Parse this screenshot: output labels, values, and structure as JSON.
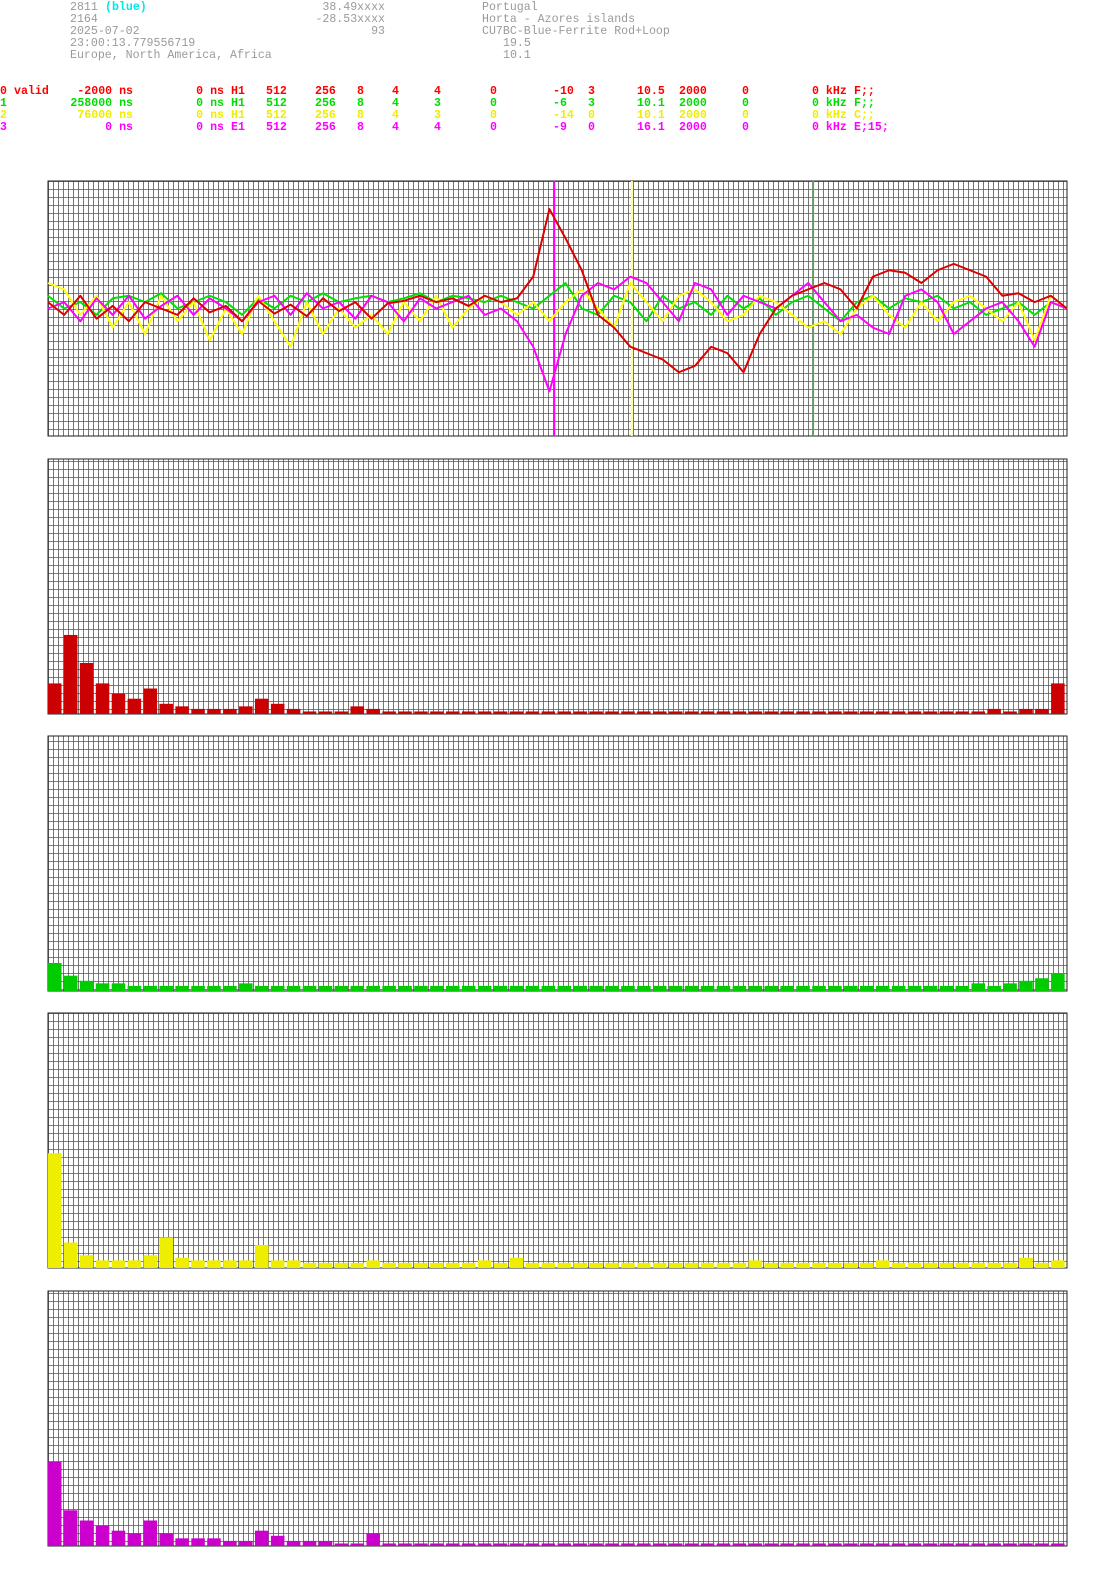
{
  "header": {
    "station": "2811",
    "station_note": "(blue)",
    "id": "2164",
    "date": "2025-07-02",
    "time": "23:00:13.779556719",
    "region": "Europe, North America, Africa",
    "latitude": "38.49xxxx",
    "longitude": "-28.53xxxx",
    "altitude": "93",
    "country": "Portugal",
    "city": "Horta - Azores islands",
    "antenna": "CU7BC-Blue-Ferrite Rod+Loop",
    "value_a": "19.5",
    "value_b": "10.1"
  },
  "channels": [
    {
      "channel": "0",
      "status": "valid",
      "color": "#ff0000",
      "cells": [
        "-2000 ns",
        "0 ns",
        "H1",
        "512",
        "256",
        "8",
        "4",
        "4",
        "0",
        "-10",
        "3",
        "10.5",
        "2000",
        "0",
        "0 kHz",
        "F;;"
      ]
    },
    {
      "channel": "1",
      "color": "#00dd00",
      "cells": [
        "258000 ns",
        "0 ns",
        "H1",
        "512",
        "256",
        "8",
        "4",
        "3",
        "0",
        "-6",
        "3",
        "10.1",
        "2000",
        "0",
        "0 kHz",
        "F;;"
      ]
    },
    {
      "channel": "2",
      "color": "#eeee00",
      "cells": [
        "76000 ns",
        "0 ns",
        "H1",
        "512",
        "256",
        "8",
        "4",
        "3",
        "0",
        "-14",
        "0",
        "10.1",
        "2000",
        "0",
        "0 kHz",
        "C;;"
      ]
    },
    {
      "channel": "3",
      "color": "#ff00ff",
      "cells": [
        "0 ns",
        "0 ns",
        "E1",
        "512",
        "256",
        "8",
        "4",
        "4",
        "0",
        "-9",
        "0",
        "16.1",
        "2000",
        "0",
        "0 kHz",
        "E;15;"
      ]
    }
  ],
  "chart_data": [
    {
      "type": "line",
      "xlim": [
        0,
        63
      ],
      "ylim": [
        -1,
        1
      ],
      "grid": true,
      "markers": [
        {
          "x": 31.3,
          "color": "#ff00ff"
        },
        {
          "x": 36.1,
          "color": "#ffff99"
        },
        {
          "x": 47.3,
          "color": "#669966"
        }
      ],
      "series": [
        {
          "color": "#00e000",
          "values": [
            0.1,
            0.0,
            0.05,
            -0.05,
            0.08,
            0.1,
            0.05,
            0.12,
            0.0,
            0.05,
            0.1,
            0.05,
            -0.05,
            0.08,
            0.0,
            0.1,
            0.05,
            0.12,
            0.05,
            0.08,
            0.1,
            0.05,
            0.08,
            0.12,
            0.05,
            0.1,
            0.08,
            0.05,
            0.1,
            0.05,
            0.0,
            0.1,
            0.2,
            0.0,
            -0.05,
            0.1,
            0.05,
            -0.1,
            0.1,
            0.0,
            0.05,
            -0.05,
            0.1,
            0.0,
            0.08,
            -0.05,
            0.05,
            0.1,
            0.0,
            -0.1,
            0.05,
            0.1,
            0.0,
            0.08,
            0.05,
            0.1,
            0.0,
            0.05,
            -0.05,
            0.0,
            0.05,
            -0.05,
            0.05,
            0.0
          ]
        },
        {
          "color": "#ffff00",
          "values": [
            0.2,
            0.15,
            -0.05,
            0.1,
            -0.15,
            0.05,
            -0.2,
            0.1,
            -0.1,
            0.05,
            -0.25,
            0.0,
            -0.2,
            0.1,
            -0.1,
            -0.3,
            0.05,
            -0.2,
            0.0,
            -0.15,
            -0.05,
            -0.2,
            0.05,
            -0.1,
            0.1,
            -0.15,
            0.0,
            0.1,
            0.05,
            -0.05,
            0.05,
            -0.1,
            0.05,
            0.15,
            0.0,
            -0.15,
            0.2,
            0.05,
            -0.1,
            0.1,
            0.15,
            0.05,
            -0.1,
            -0.05,
            0.1,
            0.05,
            -0.05,
            -0.15,
            -0.1,
            -0.2,
            0.0,
            0.1,
            -0.05,
            -0.15,
            0.05,
            -0.1,
            0.05,
            0.1,
            0.0,
            -0.1,
            0.05,
            -0.25,
            0.1,
            0.0
          ]
        },
        {
          "color": "#ff00ff",
          "values": [
            0.0,
            0.05,
            -0.1,
            0.08,
            -0.05,
            0.1,
            -0.08,
            0.02,
            0.1,
            -0.05,
            0.08,
            0.0,
            -0.1,
            0.05,
            0.1,
            -0.05,
            0.12,
            0.0,
            0.05,
            -0.08,
            0.1,
            0.05,
            -0.1,
            0.08,
            0.0,
            0.05,
            0.1,
            -0.05,
            0.0,
            -0.1,
            -0.3,
            -0.65,
            -0.2,
            0.1,
            0.2,
            0.15,
            0.25,
            0.2,
            0.05,
            -0.1,
            0.2,
            0.15,
            -0.05,
            0.1,
            0.05,
            0.0,
            0.1,
            0.2,
            0.05,
            -0.1,
            -0.05,
            -0.15,
            -0.2,
            0.1,
            0.15,
            0.05,
            -0.2,
            -0.1,
            0.0,
            0.05,
            -0.1,
            -0.3,
            0.05,
            0.0
          ]
        },
        {
          "color": "#dd0000",
          "values": [
            0.05,
            -0.05,
            0.1,
            -0.08,
            0.02,
            -0.1,
            0.05,
            0.0,
            -0.05,
            0.08,
            -0.03,
            0.02,
            -0.1,
            0.06,
            -0.04,
            0.03,
            -0.06,
            0.08,
            -0.02,
            0.05,
            -0.08,
            0.04,
            0.06,
            0.1,
            0.05,
            0.08,
            0.02,
            0.1,
            0.05,
            0.08,
            0.25,
            0.78,
            0.55,
            0.3,
            -0.05,
            -0.15,
            -0.3,
            -0.35,
            -0.4,
            -0.5,
            -0.45,
            -0.3,
            -0.35,
            -0.5,
            -0.2,
            0.0,
            0.1,
            0.15,
            0.2,
            0.15,
            0.0,
            0.25,
            0.3,
            0.28,
            0.2,
            0.3,
            0.35,
            0.3,
            0.25,
            0.1,
            0.12,
            0.05,
            0.1,
            0.0
          ]
        }
      ]
    },
    {
      "type": "bar",
      "ylim": [
        0,
        1
      ],
      "grid": true,
      "color": "#cc0000",
      "values": [
        0.12,
        0.31,
        0.2,
        0.12,
        0.08,
        0.06,
        0.1,
        0.04,
        0.03,
        0.02,
        0.02,
        0.02,
        0.03,
        0.06,
        0.04,
        0.02,
        0.01,
        0.01,
        0.01,
        0.03,
        0.02,
        0.01,
        0.01,
        0.01,
        0.01,
        0.01,
        0.01,
        0.01,
        0.01,
        0.01,
        0.01,
        0.01,
        0.01,
        0.01,
        0.01,
        0.01,
        0.01,
        0.01,
        0.01,
        0.01,
        0.01,
        0.01,
        0.01,
        0.01,
        0.01,
        0.01,
        0.01,
        0.01,
        0.01,
        0.01,
        0.01,
        0.01,
        0.01,
        0.01,
        0.01,
        0.01,
        0.01,
        0.01,
        0.01,
        0.02,
        0.01,
        0.02,
        0.02,
        0.12
      ]
    },
    {
      "type": "bar",
      "ylim": [
        0,
        1
      ],
      "grid": true,
      "color": "#00cc00",
      "values": [
        0.11,
        0.06,
        0.04,
        0.03,
        0.03,
        0.02,
        0.02,
        0.02,
        0.02,
        0.02,
        0.02,
        0.02,
        0.03,
        0.02,
        0.02,
        0.02,
        0.02,
        0.02,
        0.02,
        0.02,
        0.02,
        0.02,
        0.02,
        0.02,
        0.02,
        0.02,
        0.02,
        0.02,
        0.02,
        0.02,
        0.02,
        0.02,
        0.02,
        0.02,
        0.02,
        0.02,
        0.02,
        0.02,
        0.02,
        0.02,
        0.02,
        0.02,
        0.02,
        0.02,
        0.02,
        0.02,
        0.02,
        0.02,
        0.02,
        0.02,
        0.02,
        0.02,
        0.02,
        0.02,
        0.02,
        0.02,
        0.02,
        0.02,
        0.03,
        0.02,
        0.03,
        0.04,
        0.05,
        0.07
      ]
    },
    {
      "type": "bar",
      "ylim": [
        0,
        1
      ],
      "grid": true,
      "color": "#eeee00",
      "values": [
        0.45,
        0.1,
        0.05,
        0.03,
        0.03,
        0.03,
        0.05,
        0.12,
        0.04,
        0.03,
        0.03,
        0.03,
        0.03,
        0.09,
        0.03,
        0.03,
        0.02,
        0.02,
        0.02,
        0.02,
        0.03,
        0.02,
        0.02,
        0.02,
        0.02,
        0.02,
        0.02,
        0.03,
        0.02,
        0.04,
        0.02,
        0.02,
        0.02,
        0.02,
        0.02,
        0.02,
        0.02,
        0.02,
        0.02,
        0.02,
        0.02,
        0.02,
        0.02,
        0.02,
        0.03,
        0.02,
        0.02,
        0.02,
        0.02,
        0.02,
        0.02,
        0.02,
        0.03,
        0.02,
        0.02,
        0.02,
        0.02,
        0.02,
        0.02,
        0.02,
        0.02,
        0.04,
        0.02,
        0.03
      ]
    },
    {
      "type": "bar",
      "ylim": [
        0,
        1
      ],
      "grid": true,
      "color": "#cc00cc",
      "values": [
        0.33,
        0.14,
        0.1,
        0.08,
        0.06,
        0.05,
        0.1,
        0.05,
        0.03,
        0.03,
        0.03,
        0.02,
        0.02,
        0.06,
        0.04,
        0.02,
        0.02,
        0.02,
        0.01,
        0.01,
        0.05,
        0.01,
        0.01,
        0.01,
        0.01,
        0.01,
        0.01,
        0.01,
        0.01,
        0.01,
        0.01,
        0.01,
        0.01,
        0.01,
        0.01,
        0.01,
        0.01,
        0.01,
        0.01,
        0.01,
        0.01,
        0.01,
        0.01,
        0.01,
        0.01,
        0.01,
        0.01,
        0.01,
        0.01,
        0.01,
        0.01,
        0.01,
        0.01,
        0.01,
        0.01,
        0.01,
        0.01,
        0.01,
        0.01,
        0.01,
        0.01,
        0.01,
        0.01,
        0.01
      ]
    }
  ]
}
